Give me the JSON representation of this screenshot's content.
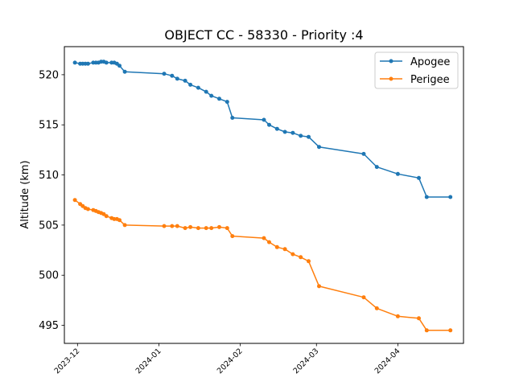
{
  "chart_data": {
    "type": "line",
    "title": "OBJECT CC - 58330 - Priority :4",
    "xlabel": "",
    "ylabel": "Altitude (km)",
    "x_axis_type": "date",
    "xlim": [
      "2023-11-26",
      "2024-04-26"
    ],
    "ylim": [
      493.2,
      522.8
    ],
    "yticks": [
      495,
      500,
      505,
      510,
      515,
      520
    ],
    "xticks": [
      "2023-12",
      "2024-01",
      "2024-02",
      "2024-03",
      "2024-04"
    ],
    "xtick_dates": [
      "2023-12-01",
      "2024-01-01",
      "2024-02-01",
      "2024-03-01",
      "2024-04-01"
    ],
    "grid": false,
    "legend_position": "top-right",
    "x": [
      "2023-11-30",
      "2023-12-02",
      "2023-12-03",
      "2023-12-04",
      "2023-12-05",
      "2023-12-07",
      "2023-12-08",
      "2023-12-09",
      "2023-12-10",
      "2023-12-11",
      "2023-12-12",
      "2023-12-14",
      "2023-12-15",
      "2023-12-16",
      "2023-12-17",
      "2023-12-19",
      "2024-01-03",
      "2024-01-06",
      "2024-01-08",
      "2024-01-11",
      "2024-01-13",
      "2024-01-16",
      "2024-01-19",
      "2024-01-21",
      "2024-01-24",
      "2024-01-27",
      "2024-01-29",
      "2024-02-10",
      "2024-02-12",
      "2024-02-15",
      "2024-02-18",
      "2024-02-21",
      "2024-02-24",
      "2024-02-27",
      "2024-03-02",
      "2024-03-19",
      "2024-03-24",
      "2024-04-01",
      "2024-04-09",
      "2024-04-12",
      "2024-04-21"
    ],
    "series": [
      {
        "name": "Apogee",
        "color": "#1f77b4",
        "values": [
          521.2,
          521.1,
          521.1,
          521.1,
          521.1,
          521.2,
          521.2,
          521.2,
          521.3,
          521.3,
          521.2,
          521.2,
          521.2,
          521.1,
          520.9,
          520.3,
          520.1,
          519.9,
          519.6,
          519.4,
          519.0,
          518.7,
          518.3,
          517.9,
          517.6,
          517.3,
          515.7,
          515.5,
          515.0,
          514.6,
          514.3,
          514.2,
          513.9,
          513.8,
          512.8,
          512.1,
          510.8,
          510.1,
          509.7,
          507.8,
          507.8
        ]
      },
      {
        "name": "Perigee",
        "color": "#ff7f0e",
        "values": [
          507.5,
          507.1,
          506.9,
          506.7,
          506.6,
          506.5,
          506.4,
          506.3,
          506.2,
          506.1,
          505.9,
          505.7,
          505.6,
          505.6,
          505.5,
          505.0,
          504.9,
          504.9,
          504.9,
          504.7,
          504.8,
          504.7,
          504.7,
          504.7,
          504.8,
          504.7,
          503.9,
          503.7,
          503.3,
          502.8,
          502.6,
          502.1,
          501.8,
          501.4,
          498.9,
          497.8,
          496.7,
          495.9,
          495.7,
          494.5,
          494.5
        ]
      }
    ]
  }
}
